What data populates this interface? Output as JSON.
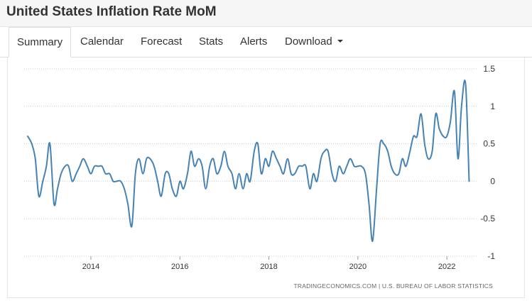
{
  "header": {
    "title": "United States Inflation Rate MoM"
  },
  "tabs": [
    {
      "label": "Summary",
      "active": true
    },
    {
      "label": "Calendar"
    },
    {
      "label": "Forecast"
    },
    {
      "label": "Stats"
    },
    {
      "label": "Alerts"
    },
    {
      "label": "Download",
      "has_dropdown": true
    }
  ],
  "colors": {
    "line": "#4682b4",
    "grid": "#cccccc",
    "text": "#333333"
  },
  "chart_data": {
    "type": "line",
    "title": "",
    "xlabel": "",
    "ylabel": "",
    "xlim": [
      2012.5,
      2022.7
    ],
    "ylim": [
      -1,
      1.5
    ],
    "y_ticks": [
      1.5,
      1,
      0.5,
      0,
      -0.5,
      -1
    ],
    "y_tick_labels": [
      "1.5",
      "1",
      "0.5",
      "0",
      "-0.5",
      "-1"
    ],
    "x_ticks": [
      2014,
      2016,
      2018,
      2020,
      2022
    ],
    "x_tick_labels": [
      "2014",
      "2016",
      "2018",
      "2020",
      "2022"
    ],
    "y_axis_side": "right",
    "grid": "horizontal dotted",
    "source": "TRADINGECONOMICS.COM | U.S. BUREAU OF LABOR STATISTICS",
    "series": [
      {
        "values": [
          [
            2012.58,
            0.6
          ],
          [
            2012.67,
            0.5
          ],
          [
            2012.75,
            0.3
          ],
          [
            2012.83,
            -0.2
          ],
          [
            2012.92,
            0.0
          ],
          [
            2013.0,
            0.2
          ],
          [
            2013.08,
            0.5
          ],
          [
            2013.17,
            -0.3
          ],
          [
            2013.25,
            -0.1
          ],
          [
            2013.33,
            0.1
          ],
          [
            2013.42,
            0.2
          ],
          [
            2013.5,
            0.2
          ],
          [
            2013.58,
            0.0
          ],
          [
            2013.67,
            0.1
          ],
          [
            2013.75,
            0.2
          ],
          [
            2013.83,
            0.3
          ],
          [
            2013.92,
            0.2
          ],
          [
            2014.0,
            0.1
          ],
          [
            2014.08,
            0.2
          ],
          [
            2014.17,
            0.2
          ],
          [
            2014.25,
            0.2
          ],
          [
            2014.33,
            0.1
          ],
          [
            2014.42,
            0.1
          ],
          [
            2014.5,
            0.0
          ],
          [
            2014.58,
            0.0
          ],
          [
            2014.67,
            0.0
          ],
          [
            2014.75,
            -0.1
          ],
          [
            2014.83,
            -0.3
          ],
          [
            2014.92,
            -0.6
          ],
          [
            2015.0,
            0.1
          ],
          [
            2015.08,
            0.3
          ],
          [
            2015.17,
            0.1
          ],
          [
            2015.25,
            0.3
          ],
          [
            2015.33,
            0.3
          ],
          [
            2015.42,
            0.2
          ],
          [
            2015.5,
            0.0
          ],
          [
            2015.58,
            -0.2
          ],
          [
            2015.67,
            0.1
          ],
          [
            2015.75,
            0.1
          ],
          [
            2015.83,
            -0.1
          ],
          [
            2015.92,
            -0.2
          ],
          [
            2016.0,
            0.0
          ],
          [
            2016.08,
            -0.1
          ],
          [
            2016.17,
            0.1
          ],
          [
            2016.25,
            0.4
          ],
          [
            2016.33,
            0.2
          ],
          [
            2016.42,
            0.3
          ],
          [
            2016.5,
            0.2
          ],
          [
            2016.58,
            -0.1
          ],
          [
            2016.67,
            0.2
          ],
          [
            2016.75,
            0.3
          ],
          [
            2016.83,
            0.1
          ],
          [
            2016.92,
            0.2
          ],
          [
            2017.0,
            0.4
          ],
          [
            2017.08,
            0.2
          ],
          [
            2017.17,
            0.1
          ],
          [
            2017.25,
            -0.1
          ],
          [
            2017.33,
            0.1
          ],
          [
            2017.42,
            -0.1
          ],
          [
            2017.5,
            0.1
          ],
          [
            2017.58,
            0.0
          ],
          [
            2017.67,
            0.4
          ],
          [
            2017.75,
            0.5
          ],
          [
            2017.83,
            0.1
          ],
          [
            2017.92,
            0.3
          ],
          [
            2018.0,
            0.2
          ],
          [
            2018.08,
            0.4
          ],
          [
            2018.17,
            0.3
          ],
          [
            2018.25,
            0.2
          ],
          [
            2018.33,
            0.1
          ],
          [
            2018.42,
            0.3
          ],
          [
            2018.5,
            0.1
          ],
          [
            2018.58,
            0.1
          ],
          [
            2018.67,
            0.2
          ],
          [
            2018.75,
            0.2
          ],
          [
            2018.83,
            0.2
          ],
          [
            2018.92,
            -0.1
          ],
          [
            2019.0,
            0.1
          ],
          [
            2019.08,
            0.0
          ],
          [
            2019.17,
            0.3
          ],
          [
            2019.25,
            0.4
          ],
          [
            2019.33,
            0.4
          ],
          [
            2019.42,
            0.1
          ],
          [
            2019.5,
            0.0
          ],
          [
            2019.58,
            0.2
          ],
          [
            2019.67,
            0.1
          ],
          [
            2019.75,
            0.2
          ],
          [
            2019.83,
            0.3
          ],
          [
            2019.92,
            0.2
          ],
          [
            2020.0,
            0.2
          ],
          [
            2020.08,
            0.2
          ],
          [
            2020.17,
            0.1
          ],
          [
            2020.25,
            -0.3
          ],
          [
            2020.33,
            -0.8
          ],
          [
            2020.42,
            -0.1
          ],
          [
            2020.5,
            0.5
          ],
          [
            2020.58,
            0.5
          ],
          [
            2020.67,
            0.4
          ],
          [
            2020.75,
            0.2
          ],
          [
            2020.83,
            0.1
          ],
          [
            2020.92,
            0.1
          ],
          [
            2021.0,
            0.3
          ],
          [
            2021.08,
            0.2
          ],
          [
            2021.17,
            0.4
          ],
          [
            2021.25,
            0.6
          ],
          [
            2021.33,
            0.6
          ],
          [
            2021.42,
            0.9
          ],
          [
            2021.5,
            0.5
          ],
          [
            2021.58,
            0.3
          ],
          [
            2021.67,
            0.4
          ],
          [
            2021.75,
            0.9
          ],
          [
            2021.83,
            0.7
          ],
          [
            2021.92,
            0.6
          ],
          [
            2022.0,
            0.6
          ],
          [
            2022.08,
            0.8
          ],
          [
            2022.17,
            1.2
          ],
          [
            2022.25,
            0.3
          ],
          [
            2022.33,
            1.0
          ],
          [
            2022.42,
            1.3
          ],
          [
            2022.5,
            0.0
          ]
        ]
      }
    ]
  }
}
